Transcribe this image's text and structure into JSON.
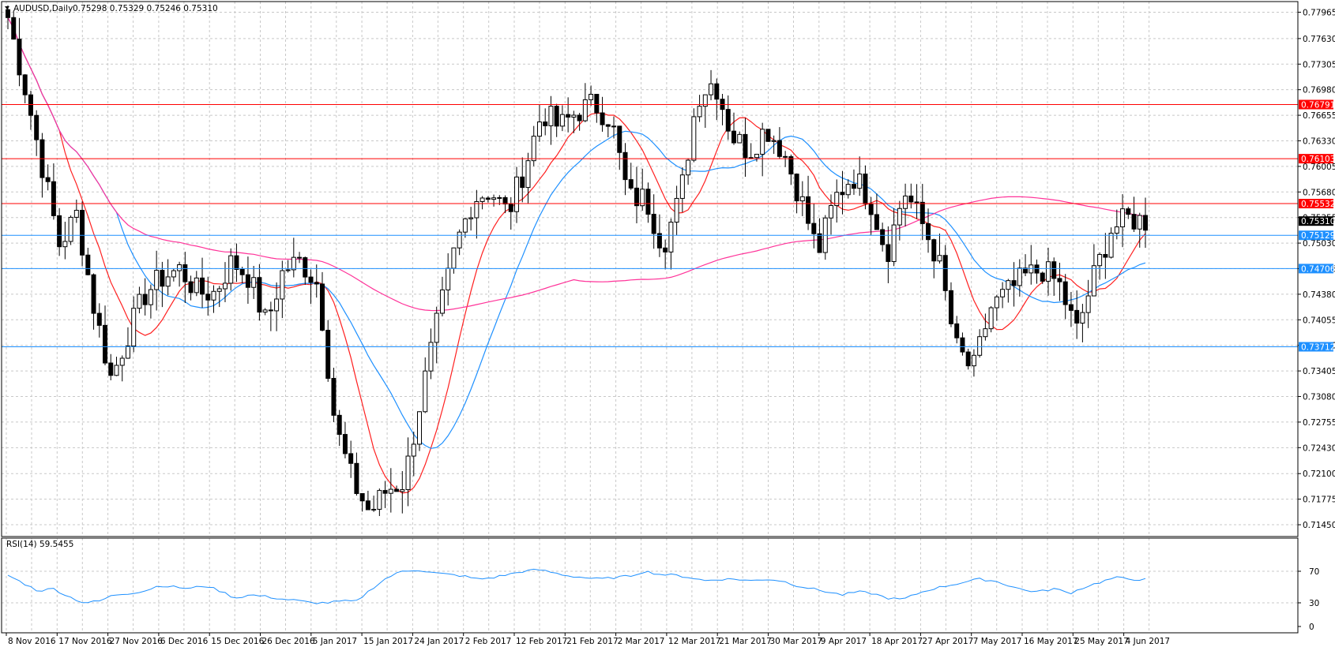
{
  "chart_data": [
    {
      "type": "candlestick",
      "title": "AUDUSD,Daily",
      "ohlc_summary": "0.75298 0.75329 0.75246 0.75310",
      "ylim": [
        0.713,
        0.781
      ],
      "y_ticks": [
        "0.77965",
        "0.77630",
        "0.77305",
        "0.76980",
        "0.76655",
        "0.76330",
        "0.76005",
        "0.75680",
        "0.75355",
        "0.75030",
        "0.74705",
        "0.74380",
        "0.74055",
        "0.73730",
        "0.73405",
        "0.73080",
        "0.72755",
        "0.72430",
        "0.72100",
        "0.71775",
        "0.71450"
      ],
      "x_ticks": [
        "8 Nov 2016",
        "17 Nov 2016",
        "27 Nov 2016",
        "6 Dec 2016",
        "15 Dec 2016",
        "26 Dec 2016",
        "5 Jan 2017",
        "15 Jan 2017",
        "24 Jan 2017",
        "2 Feb 2017",
        "12 Feb 2017",
        "21 Feb 2017",
        "2 Mar 2017",
        "12 Mar 2017",
        "21 Mar 2017",
        "30 Mar 2017",
        "9 Apr 2017",
        "18 Apr 2017",
        "27 Apr 2017",
        "7 May 2017",
        "16 May 2017",
        "25 May 2017",
        "4 Jun 2017"
      ],
      "close_anchors": [
        0.779,
        0.77,
        0.76,
        0.75,
        0.754,
        0.742,
        0.733,
        0.739,
        0.744,
        0.746,
        0.747,
        0.744,
        0.744,
        0.748,
        0.746,
        0.74,
        0.747,
        0.748,
        0.745,
        0.727,
        0.72,
        0.716,
        0.719,
        0.72,
        0.731,
        0.741,
        0.75,
        0.756,
        0.757,
        0.754,
        0.76,
        0.767,
        0.765,
        0.767,
        0.768,
        0.766,
        0.756,
        0.756,
        0.75,
        0.756,
        0.769,
        0.771,
        0.764,
        0.762,
        0.765,
        0.762,
        0.756,
        0.749,
        0.756,
        0.759,
        0.756,
        0.749,
        0.757,
        0.753,
        0.748,
        0.737,
        0.734,
        0.742,
        0.744,
        0.746,
        0.747,
        0.745,
        0.739,
        0.746,
        0.752,
        0.7534,
        0.7531
      ],
      "horizontal_lines": [
        {
          "price": 0.76791,
          "label": "0.76791",
          "color": "#ff0000"
        },
        {
          "price": 0.76103,
          "label": "0.76103",
          "color": "#ff0000"
        },
        {
          "price": 0.75532,
          "label": "0.75532",
          "color": "#ff0000"
        },
        {
          "price": 0.75129,
          "label": "0.75129",
          "color": "#1e90ff"
        },
        {
          "price": 0.74706,
          "label": "0.74706",
          "color": "#1e90ff"
        },
        {
          "price": 0.73712,
          "label": "0.73712",
          "color": "#1e90ff"
        }
      ],
      "current_price": {
        "price": 0.7531,
        "label": "0.75310"
      },
      "moving_averages": [
        {
          "period": "short",
          "color": "#ff2020"
        },
        {
          "period": "medium",
          "color": "#1e90ff"
        },
        {
          "period": "long",
          "color": "#ff3399"
        }
      ],
      "grid": true
    },
    {
      "type": "line",
      "title": "RSI(14) 59.5455",
      "ylim": [
        0,
        100
      ],
      "y_ticks": [
        "70",
        "30",
        "0"
      ],
      "color": "#1e90ff",
      "rsi_anchors": [
        65,
        55,
        45,
        48,
        38,
        30,
        32,
        40,
        42,
        45,
        52,
        50,
        48,
        52,
        45,
        36,
        40,
        38,
        35,
        33,
        30,
        30,
        32,
        32,
        48,
        62,
        70,
        72,
        68,
        66,
        64,
        60,
        62,
        66,
        70,
        72,
        68,
        64,
        62,
        60,
        62,
        64,
        70,
        66,
        65,
        62,
        58,
        60,
        60,
        58,
        60,
        58,
        52,
        48,
        44,
        40,
        44,
        42,
        36,
        34,
        42,
        48,
        52,
        56,
        60,
        58,
        52,
        46,
        44,
        48,
        42,
        50,
        56,
        62,
        60,
        59.5
      ]
    }
  ]
}
